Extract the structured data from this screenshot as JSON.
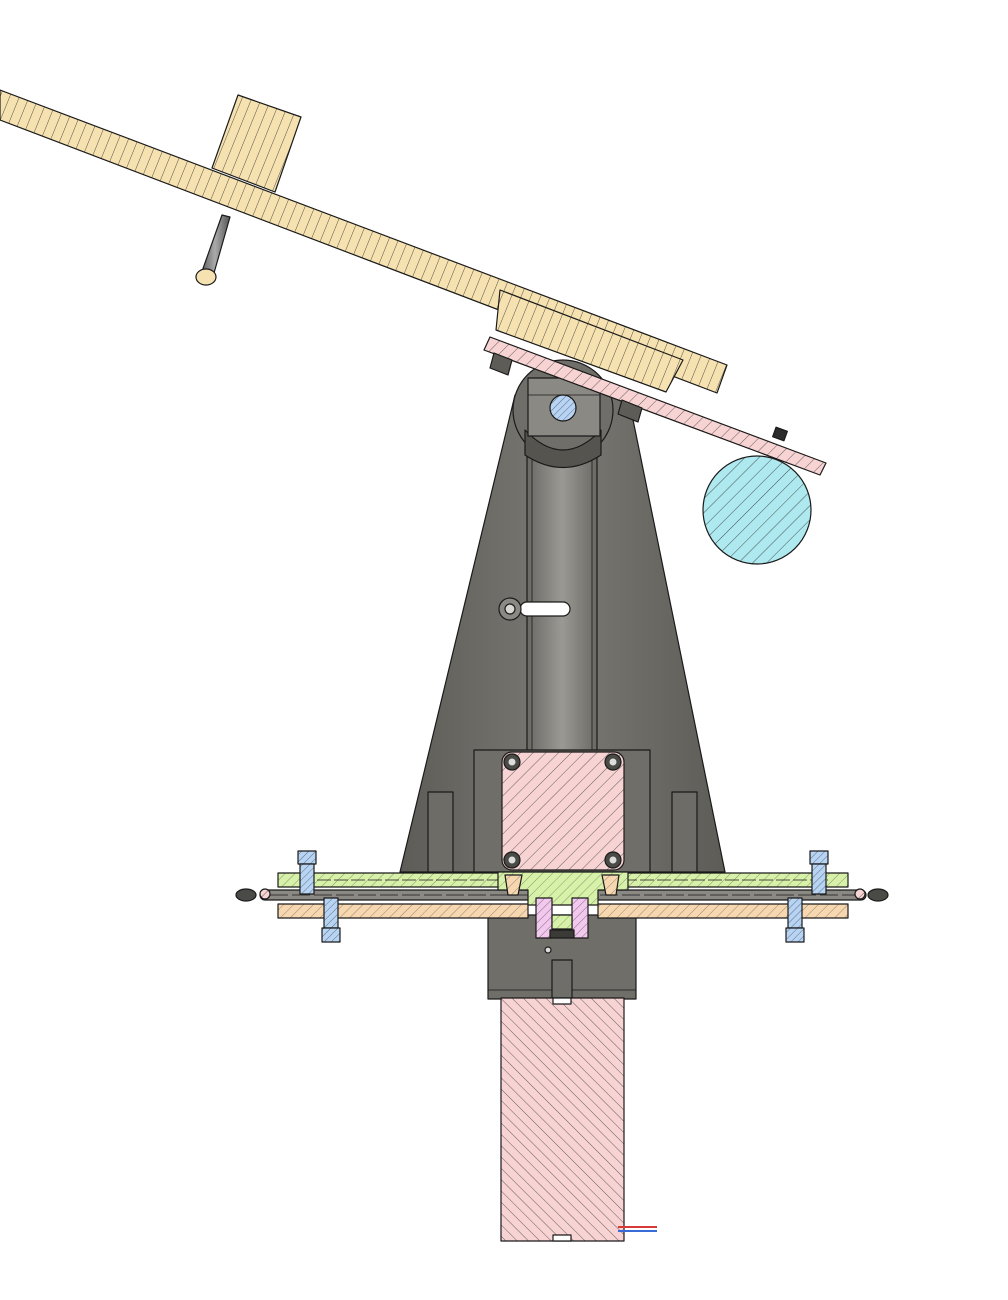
{
  "drawing": {
    "view": "section",
    "colors": {
      "background": "#ffffff",
      "outline": "#1a1a1a",
      "wood": "#f5e2b0",
      "pink_part": "#f7d3d3",
      "green_plate": "#d7f2a8",
      "orange_plate": "#f6d7b0",
      "blue_hardware": "#b8d4f5",
      "counterweight": "#aee9f0",
      "magenta_part": "#f2c8ee",
      "steel_dark": "#5d5c57",
      "steel_mid": "#7a7973",
      "steel_light": "#9a9993",
      "hatch": "#2a2a2a"
    },
    "parts": [
      "tilted-arm",
      "arm-block",
      "arm-rod",
      "mounting-plate",
      "counterweight",
      "pivot-hub",
      "tower",
      "motor-upper",
      "base-plate-upper",
      "base-plate-lower",
      "coupling",
      "base-housing",
      "motor-lower",
      "adjuster-screws",
      "cable"
    ]
  }
}
